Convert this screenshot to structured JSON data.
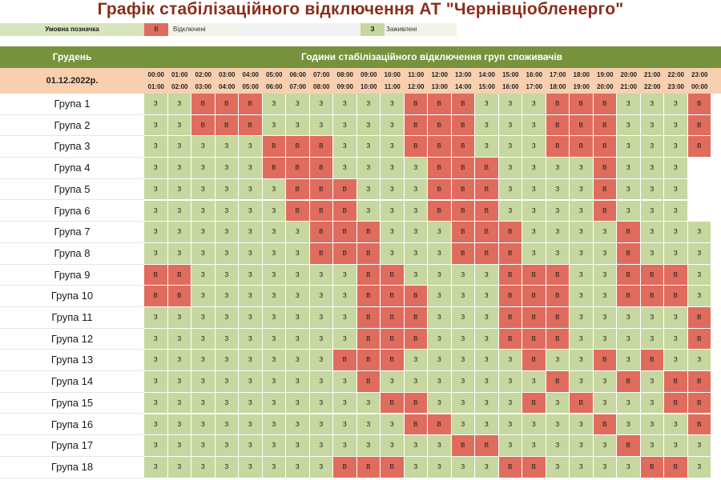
{
  "title": "Графік стабілізаційного відключення АТ \"Чернівціобленерго\"",
  "legend": {
    "label": "Умовна позначка",
    "off_code": "В",
    "off_text": "Відключені",
    "on_code": "З",
    "on_text": "Заживлені"
  },
  "colors": {
    "header": "#76923c",
    "date_row": "#f8d0b0",
    "on": "#c6d79f",
    "off": "#e06c5e",
    "title": "#8b2e17"
  },
  "header": {
    "month": "Грудень",
    "title": "Години стабілізаційного відключення груп споживачів"
  },
  "date": "01.12.2022р.",
  "hours": [
    [
      "00:00",
      "01:00"
    ],
    [
      "01:00",
      "02:00"
    ],
    [
      "02:00",
      "03:00"
    ],
    [
      "03:00",
      "04:00"
    ],
    [
      "04:00",
      "05:00"
    ],
    [
      "05:00",
      "06:00"
    ],
    [
      "06:00",
      "07:00"
    ],
    [
      "07:00",
      "08:00"
    ],
    [
      "08:00",
      "09:00"
    ],
    [
      "09:00",
      "10:00"
    ],
    [
      "10:00",
      "11:00"
    ],
    [
      "11:00",
      "12:00"
    ],
    [
      "12:00",
      "13:00"
    ],
    [
      "13:00",
      "14:00"
    ],
    [
      "14:00",
      "15:00"
    ],
    [
      "15:00",
      "16:00"
    ],
    [
      "16:00",
      "17:00"
    ],
    [
      "17:00",
      "18:00"
    ],
    [
      "18:00",
      "19:00"
    ],
    [
      "19:00",
      "20:00"
    ],
    [
      "20:00",
      "21:00"
    ],
    [
      "21:00",
      "22:00"
    ],
    [
      "22:00",
      "23:00"
    ],
    [
      "23:00",
      "00:00"
    ]
  ],
  "groups": [
    {
      "name": "Група 1",
      "schedule": "ЗЗВВВЗЗЗЗЗЗВВВЗЗЗВВВЗЗЗВ"
    },
    {
      "name": "Група 2",
      "schedule": "ЗЗВВВЗЗЗЗЗЗВВВЗЗЗВВВЗЗЗВ"
    },
    {
      "name": "Група 3",
      "schedule": "ЗЗЗЗЗВВВЗЗЗВВВЗЗЗВВВЗЗЗВ"
    },
    {
      "name": "Група 4",
      "schedule": "ЗЗЗЗЗВВВЗЗЗЗВВВЗЗЗЗВЗЗЗ"
    },
    {
      "name": "Група 5",
      "schedule": "ЗЗЗЗЗЗВВВЗЗЗВВВЗЗЗЗВЗЗЗ"
    },
    {
      "name": "Група 6",
      "schedule": "ЗЗЗЗЗЗВВВЗЗЗВВВЗЗЗЗВЗЗЗ"
    },
    {
      "name": "Група 7",
      "schedule": "ЗЗЗЗЗЗЗВВВЗЗЗВВВЗЗЗЗВЗЗЗ"
    },
    {
      "name": "Група 8",
      "schedule": "ЗЗЗЗЗЗЗВВВЗЗЗВВВЗЗЗЗВЗЗЗ"
    },
    {
      "name": "Група 9",
      "schedule": "ВВЗЗЗЗЗЗЗВВЗЗЗЗВВВЗЗВВВЗ"
    },
    {
      "name": "Група 10",
      "schedule": "ВВЗЗЗЗЗЗЗВВВЗЗЗВВВЗЗВВВЗ"
    },
    {
      "name": "Група 11",
      "schedule": "ЗЗЗЗЗЗЗЗЗВВВЗЗЗВВВЗЗЗЗЗВ"
    },
    {
      "name": "Група 12",
      "schedule": "ЗЗЗЗЗЗЗЗЗВВВЗЗЗВВВЗЗЗЗЗВ"
    },
    {
      "name": "Група 13",
      "schedule": "ЗЗЗЗЗЗЗЗВВВЗЗЗЗЗВЗЗВЗВЗЗ"
    },
    {
      "name": "Група 14",
      "schedule": "ЗЗЗЗЗЗЗЗЗВЗЗЗЗЗЗЗВЗЗВЗВВ"
    },
    {
      "name": "Група 15",
      "schedule": "ЗЗЗЗЗЗЗЗЗЗВВЗЗЗЗВЗВЗЗЗВВ"
    },
    {
      "name": "Група 16",
      "schedule": "ЗЗЗЗЗЗЗЗЗЗЗВВЗЗЗЗЗЗВЗЗЗВ"
    },
    {
      "name": "Група 17",
      "schedule": "ЗЗЗЗЗЗЗЗЗЗЗЗЗВВЗЗЗЗЗВЗЗЗ"
    },
    {
      "name": "Група 18",
      "schedule": "ЗЗЗЗЗЗЗЗВВВЗЗЗЗВВЗЗЗЗВВЗ"
    }
  ]
}
